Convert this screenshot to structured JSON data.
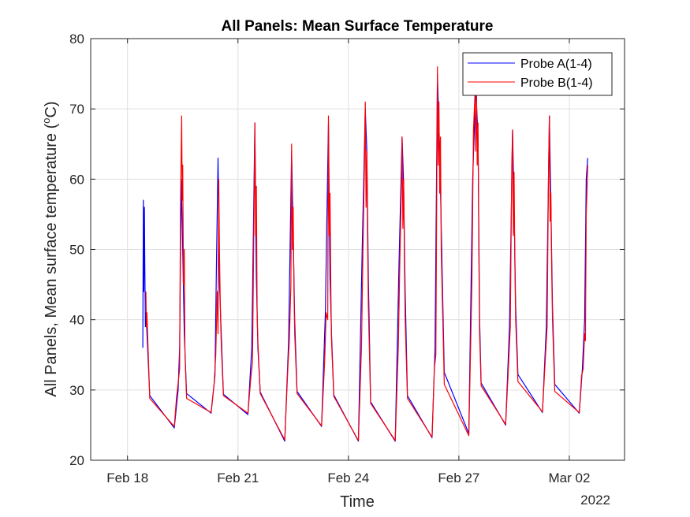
{
  "chart_data": {
    "type": "line",
    "title": "All Panels: Mean Surface Temperature",
    "xlabel": "Time",
    "ylabel": "All Panels, Mean surface temperature (",
    "ylabel_unit_sup": "o",
    "ylabel_unit_tail": "C)",
    "year_label": "2022",
    "xlim": [
      "2022-02-17T00:00",
      "2022-03-03T12:00"
    ],
    "ylim": [
      20,
      80
    ],
    "y_ticks": [
      20,
      30,
      40,
      50,
      60,
      70,
      80
    ],
    "x_ticks": [
      {
        "date": "2022-02-18T00:00",
        "label": "Feb 18"
      },
      {
        "date": "2022-02-21T00:00",
        "label": "Feb 21"
      },
      {
        "date": "2022-02-24T00:00",
        "label": "Feb 24"
      },
      {
        "date": "2022-02-27T00:00",
        "label": "Feb 27"
      },
      {
        "date": "2022-03-02T00:00",
        "label": "Mar 02"
      }
    ],
    "grid": true,
    "legend_position": "top-right",
    "series": [
      {
        "name": "Probe A(1-4)",
        "color": "#0000ff",
        "points": [
          [
            "2022-02-18T10:00",
            36
          ],
          [
            "2022-02-18T10:20",
            57
          ],
          [
            "2022-02-18T10:40",
            44
          ],
          [
            "2022-02-18T11:00",
            56
          ],
          [
            "2022-02-18T11:20",
            47
          ],
          [
            "2022-02-18T11:40",
            39
          ],
          [
            "2022-02-18T12:00",
            41
          ],
          [
            "2022-02-18T12:30",
            39
          ],
          [
            "2022-02-18T14:30",
            29.2
          ],
          [
            "2022-02-19T06:30",
            24.6
          ],
          [
            "2022-02-19T09:00",
            30
          ],
          [
            "2022-02-19T10:00",
            36
          ],
          [
            "2022-02-19T11:00",
            60
          ],
          [
            "2022-02-19T12:00",
            50
          ],
          [
            "2022-02-19T13:00",
            38
          ],
          [
            "2022-02-19T14:30",
            29.5
          ],
          [
            "2022-02-20T06:30",
            26.7
          ],
          [
            "2022-02-20T09:00",
            32
          ],
          [
            "2022-02-20T10:00",
            48
          ],
          [
            "2022-02-20T11:00",
            63
          ],
          [
            "2022-02-20T12:00",
            45
          ],
          [
            "2022-02-20T14:30",
            29.4
          ],
          [
            "2022-02-21T06:30",
            26.5
          ],
          [
            "2022-02-21T09:00",
            36
          ],
          [
            "2022-02-21T11:00",
            68
          ],
          [
            "2022-02-21T12:00",
            46
          ],
          [
            "2022-02-21T13:00",
            36
          ],
          [
            "2022-02-21T14:30",
            29.7
          ],
          [
            "2022-02-22T06:30",
            22.7
          ],
          [
            "2022-02-22T09:00",
            37
          ],
          [
            "2022-02-22T11:00",
            64
          ],
          [
            "2022-02-22T12:00",
            52
          ],
          [
            "2022-02-22T13:00",
            40
          ],
          [
            "2022-02-22T14:30",
            29.8
          ],
          [
            "2022-02-23T06:30",
            24.8
          ],
          [
            "2022-02-23T09:00",
            41
          ],
          [
            "2022-02-23T11:00",
            68
          ],
          [
            "2022-02-23T12:00",
            46
          ],
          [
            "2022-02-23T13:00",
            38
          ],
          [
            "2022-02-23T14:30",
            29.3
          ],
          [
            "2022-02-24T06:30",
            22.7
          ],
          [
            "2022-02-24T09:00",
            50
          ],
          [
            "2022-02-24T11:00",
            70
          ],
          [
            "2022-02-24T12:00",
            64
          ],
          [
            "2022-02-24T13:00",
            46
          ],
          [
            "2022-02-24T14:30",
            28.3
          ],
          [
            "2022-02-25T06:30",
            22.7
          ],
          [
            "2022-02-25T09:00",
            48
          ],
          [
            "2022-02-25T11:00",
            66
          ],
          [
            "2022-02-25T12:00",
            59
          ],
          [
            "2022-02-25T13:00",
            44
          ],
          [
            "2022-02-25T14:30",
            29.2
          ],
          [
            "2022-02-26T06:30",
            23.2
          ],
          [
            "2022-02-26T08:30",
            36
          ],
          [
            "2022-02-26T10:00",
            75
          ],
          [
            "2022-02-26T11:30",
            64
          ],
          [
            "2022-02-26T13:00",
            48
          ],
          [
            "2022-02-26T14:30",
            32.5
          ],
          [
            "2022-02-27T06:30",
            23.8
          ],
          [
            "2022-02-27T09:00",
            60
          ],
          [
            "2022-02-27T11:00",
            73
          ],
          [
            "2022-02-27T12:30",
            66
          ],
          [
            "2022-02-27T13:30",
            40
          ],
          [
            "2022-02-27T14:30",
            31
          ],
          [
            "2022-02-28T06:30",
            25
          ],
          [
            "2022-02-28T09:00",
            39
          ],
          [
            "2022-02-28T11:00",
            67
          ],
          [
            "2022-02-28T12:00",
            56
          ],
          [
            "2022-02-28T13:00",
            42
          ],
          [
            "2022-02-28T14:30",
            32.2
          ],
          [
            "2022-03-01T06:30",
            26.8
          ],
          [
            "2022-03-01T09:00",
            39
          ],
          [
            "2022-03-01T11:00",
            69
          ],
          [
            "2022-03-01T12:00",
            56
          ],
          [
            "2022-03-01T13:00",
            42
          ],
          [
            "2022-03-01T14:30",
            30.8
          ],
          [
            "2022-03-02T06:30",
            26.7
          ],
          [
            "2022-03-02T08:30",
            33
          ],
          [
            "2022-03-02T10:00",
            40
          ],
          [
            "2022-03-02T11:00",
            60
          ],
          [
            "2022-03-02T12:00",
            63
          ]
        ]
      },
      {
        "name": "Probe B(1-4)",
        "color": "#ff0000",
        "points": [
          [
            "2022-02-18T12:00",
            44
          ],
          [
            "2022-02-18T12:20",
            39
          ],
          [
            "2022-02-18T12:40",
            41
          ],
          [
            "2022-02-18T14:30",
            28.8
          ],
          [
            "2022-02-19T06:30",
            24.8
          ],
          [
            "2022-02-19T08:00",
            29
          ],
          [
            "2022-02-19T09:00",
            31
          ],
          [
            "2022-02-19T10:00",
            33
          ],
          [
            "2022-02-19T10:30",
            55
          ],
          [
            "2022-02-19T11:00",
            64
          ],
          [
            "2022-02-19T11:20",
            69
          ],
          [
            "2022-02-19T11:40",
            57
          ],
          [
            "2022-02-19T12:00",
            62
          ],
          [
            "2022-02-19T12:30",
            45
          ],
          [
            "2022-02-19T13:00",
            50
          ],
          [
            "2022-02-19T13:30",
            35
          ],
          [
            "2022-02-19T14:30",
            28.8
          ],
          [
            "2022-02-20T06:30",
            26.8
          ],
          [
            "2022-02-20T08:30",
            31
          ],
          [
            "2022-02-20T09:30",
            35
          ],
          [
            "2022-02-20T10:30",
            44
          ],
          [
            "2022-02-20T11:00",
            38
          ],
          [
            "2022-02-20T11:30",
            60
          ],
          [
            "2022-02-20T12:00",
            49
          ],
          [
            "2022-02-20T12:30",
            42
          ],
          [
            "2022-02-20T13:00",
            37
          ],
          [
            "2022-02-20T14:30",
            29.2
          ],
          [
            "2022-02-21T06:30",
            26.7
          ],
          [
            "2022-02-21T08:30",
            32
          ],
          [
            "2022-02-21T09:30",
            34
          ],
          [
            "2022-02-21T10:30",
            56
          ],
          [
            "2022-02-21T11:00",
            68
          ],
          [
            "2022-02-21T11:30",
            52
          ],
          [
            "2022-02-21T12:00",
            59
          ],
          [
            "2022-02-21T12:30",
            41
          ],
          [
            "2022-02-21T13:00",
            37
          ],
          [
            "2022-02-21T14:30",
            29.5
          ],
          [
            "2022-02-22T06:30",
            22.9
          ],
          [
            "2022-02-22T08:30",
            33
          ],
          [
            "2022-02-22T09:30",
            37
          ],
          [
            "2022-02-22T10:30",
            45
          ],
          [
            "2022-02-22T11:00",
            65
          ],
          [
            "2022-02-22T11:30",
            50
          ],
          [
            "2022-02-22T12:00",
            56
          ],
          [
            "2022-02-22T12:30",
            44
          ],
          [
            "2022-02-22T13:00",
            38
          ],
          [
            "2022-02-22T14:30",
            29.5
          ],
          [
            "2022-02-23T06:30",
            24.9
          ],
          [
            "2022-02-23T08:30",
            34
          ],
          [
            "2022-02-23T09:30",
            41
          ],
          [
            "2022-02-23T10:30",
            40
          ],
          [
            "2022-02-23T11:00",
            69
          ],
          [
            "2022-02-23T11:30",
            52
          ],
          [
            "2022-02-23T12:00",
            58
          ],
          [
            "2022-02-23T12:30",
            45
          ],
          [
            "2022-02-23T13:00",
            37
          ],
          [
            "2022-02-23T14:30",
            29.1
          ],
          [
            "2022-02-24T06:30",
            22.8
          ],
          [
            "2022-02-24T08:30",
            36
          ],
          [
            "2022-02-24T09:30",
            50
          ],
          [
            "2022-02-24T10:30",
            63
          ],
          [
            "2022-02-24T11:00",
            71
          ],
          [
            "2022-02-24T11:30",
            56
          ],
          [
            "2022-02-24T12:00",
            64
          ],
          [
            "2022-02-24T12:30",
            52
          ],
          [
            "2022-02-24T13:00",
            42
          ],
          [
            "2022-02-24T14:30",
            28.1
          ],
          [
            "2022-02-25T06:30",
            22.8
          ],
          [
            "2022-02-25T08:30",
            36
          ],
          [
            "2022-02-25T09:30",
            48
          ],
          [
            "2022-02-25T10:30",
            58
          ],
          [
            "2022-02-25T11:00",
            66
          ],
          [
            "2022-02-25T11:30",
            53
          ],
          [
            "2022-02-25T12:00",
            60
          ],
          [
            "2022-02-25T12:30",
            49
          ],
          [
            "2022-02-25T13:00",
            40
          ],
          [
            "2022-02-25T14:30",
            28.8
          ],
          [
            "2022-02-26T06:30",
            23.3
          ],
          [
            "2022-02-26T08:00",
            33
          ],
          [
            "2022-02-26T09:00",
            35
          ],
          [
            "2022-02-26T09:30",
            55
          ],
          [
            "2022-02-26T10:00",
            76
          ],
          [
            "2022-02-26T10:30",
            62
          ],
          [
            "2022-02-26T11:00",
            71
          ],
          [
            "2022-02-26T11:30",
            58
          ],
          [
            "2022-02-26T12:00",
            66
          ],
          [
            "2022-02-26T12:30",
            50
          ],
          [
            "2022-02-26T13:00",
            45
          ],
          [
            "2022-02-26T14:30",
            30.8
          ],
          [
            "2022-02-27T06:30",
            23.5
          ],
          [
            "2022-02-27T08:30",
            45
          ],
          [
            "2022-02-27T09:30",
            67
          ],
          [
            "2022-02-27T10:30",
            72
          ],
          [
            "2022-02-27T11:00",
            64
          ],
          [
            "2022-02-27T11:30",
            72
          ],
          [
            "2022-02-27T12:00",
            62
          ],
          [
            "2022-02-27T12:30",
            68
          ],
          [
            "2022-02-27T13:00",
            50
          ],
          [
            "2022-02-27T13:30",
            38
          ],
          [
            "2022-02-27T14:30",
            30.6
          ],
          [
            "2022-02-28T06:30",
            25.1
          ],
          [
            "2022-02-28T08:30",
            34
          ],
          [
            "2022-02-28T09:30",
            39
          ],
          [
            "2022-02-28T10:30",
            62
          ],
          [
            "2022-02-28T11:00",
            67
          ],
          [
            "2022-02-28T11:30",
            52
          ],
          [
            "2022-02-28T12:00",
            61
          ],
          [
            "2022-02-28T12:30",
            48
          ],
          [
            "2022-02-28T13:00",
            40
          ],
          [
            "2022-02-28T14:30",
            31.2
          ],
          [
            "2022-03-01T06:30",
            26.9
          ],
          [
            "2022-03-01T08:30",
            35
          ],
          [
            "2022-03-01T09:30",
            39
          ],
          [
            "2022-03-01T10:30",
            62
          ],
          [
            "2022-03-01T11:00",
            69
          ],
          [
            "2022-03-01T11:30",
            54
          ],
          [
            "2022-03-01T12:00",
            58
          ],
          [
            "2022-03-01T12:30",
            47
          ],
          [
            "2022-03-01T13:00",
            40
          ],
          [
            "2022-03-01T14:30",
            29.8
          ],
          [
            "2022-03-02T06:30",
            26.8
          ],
          [
            "2022-03-02T08:00",
            32
          ],
          [
            "2022-03-02T09:00",
            33
          ],
          [
            "2022-03-02T10:00",
            38
          ],
          [
            "2022-03-02T10:30",
            37
          ],
          [
            "2022-03-02T11:00",
            55
          ],
          [
            "2022-03-02T11:30",
            58
          ],
          [
            "2022-03-02T12:00",
            62
          ]
        ]
      }
    ]
  }
}
